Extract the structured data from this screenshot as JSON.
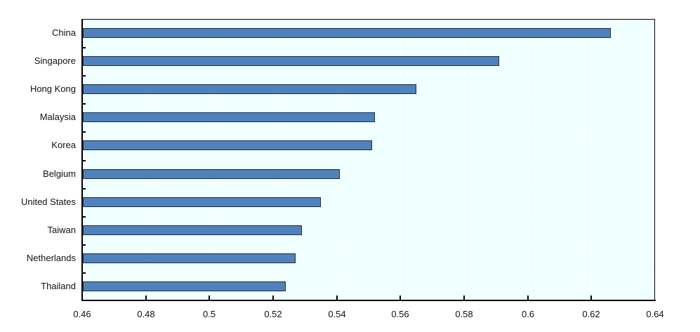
{
  "chart_data": {
    "type": "bar",
    "orientation": "horizontal",
    "title": "",
    "xlabel": "",
    "ylabel": "",
    "categories": [
      "China",
      "Singapore",
      "Hong Kong",
      "Malaysia",
      "Korea",
      "Belgium",
      "United States",
      "Taiwan",
      "Netherlands",
      "Thailand"
    ],
    "values": [
      0.626,
      0.591,
      0.565,
      0.552,
      0.551,
      0.541,
      0.535,
      0.529,
      0.527,
      0.524
    ],
    "xlim": [
      0.46,
      0.64
    ],
    "x_ticks": [
      "0.46",
      "0.48",
      "0.5",
      "0.52",
      "0.54",
      "0.56",
      "0.58",
      "0.6",
      "0.62",
      "0.64"
    ],
    "x_tick_values": [
      0.46,
      0.48,
      0.5,
      0.52,
      0.54,
      0.56,
      0.58,
      0.6,
      0.62,
      0.64
    ],
    "grid": true,
    "legend": null,
    "colors": {
      "bar_fill": "#4F81BD",
      "bar_border": "#1F2D3D",
      "plot_background": "#F0FFFF",
      "gridline": "#FFFFFF",
      "axis": "#000000"
    }
  }
}
